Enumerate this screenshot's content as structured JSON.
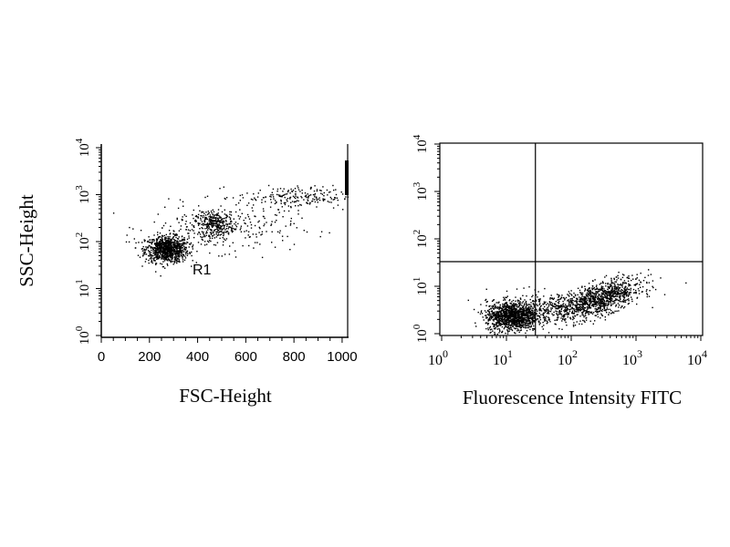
{
  "chart_data": [
    {
      "type": "scatter",
      "xlabel": "FSC-Height",
      "ylabel": "SSC-Height",
      "x_scale": "linear",
      "y_scale": "log",
      "xlim": [
        0,
        1023
      ],
      "ylim": [
        1,
        10000
      ],
      "x_ticks": [
        "0",
        "200",
        "400",
        "600",
        "800",
        "1000"
      ],
      "y_ticks": [
        {
          "base": "10",
          "exp": "0"
        },
        {
          "base": "10",
          "exp": "1"
        },
        {
          "base": "10",
          "exp": "2"
        },
        {
          "base": "10",
          "exp": "3"
        },
        {
          "base": "10",
          "exp": "4"
        }
      ],
      "annotations": [
        {
          "text": "R1",
          "x": 540,
          "y": 25
        }
      ],
      "populations": [
        {
          "cx": 270,
          "cy": 70,
          "sx": 45,
          "sy": 0.14,
          "n": 900
        },
        {
          "cx": 470,
          "cy": 250,
          "sx": 40,
          "sy": 0.12,
          "n": 250
        },
        {
          "cx": 500,
          "cy": 200,
          "sx": 150,
          "sy": 0.25,
          "n": 300
        },
        {
          "cx": 800,
          "cy": 900,
          "sx": 120,
          "sy": 0.12,
          "n": 220
        }
      ]
    },
    {
      "type": "scatter",
      "xlabel": "Fluorescence Intensity FITC",
      "ylabel": "",
      "x_scale": "log",
      "y_scale": "log",
      "xlim": [
        1,
        10000
      ],
      "ylim": [
        1,
        10000
      ],
      "x_ticks": [
        {
          "base": "10",
          "exp": "0"
        },
        {
          "base": "10",
          "exp": "1"
        },
        {
          "base": "10",
          "exp": "2"
        },
        {
          "base": "10",
          "exp": "3"
        },
        {
          "base": "10",
          "exp": "4"
        }
      ],
      "y_ticks": [
        {
          "base": "10",
          "exp": "0"
        },
        {
          "base": "10",
          "exp": "1"
        },
        {
          "base": "10",
          "exp": "2"
        },
        {
          "base": "10",
          "exp": "3"
        },
        {
          "base": "10",
          "exp": "4"
        }
      ],
      "quadrant_gate": {
        "x": 28,
        "y": 33
      },
      "populations": [
        {
          "cx": 12,
          "cy": 2.4,
          "sx": 0.2,
          "sy": 0.16,
          "n": 1200
        },
        {
          "cx": 300,
          "cy": 6,
          "sx": 0.3,
          "sy": 0.16,
          "n": 900
        },
        {
          "cx": 60,
          "cy": 3.5,
          "sx": 0.35,
          "sy": 0.15,
          "n": 400
        }
      ]
    }
  ]
}
